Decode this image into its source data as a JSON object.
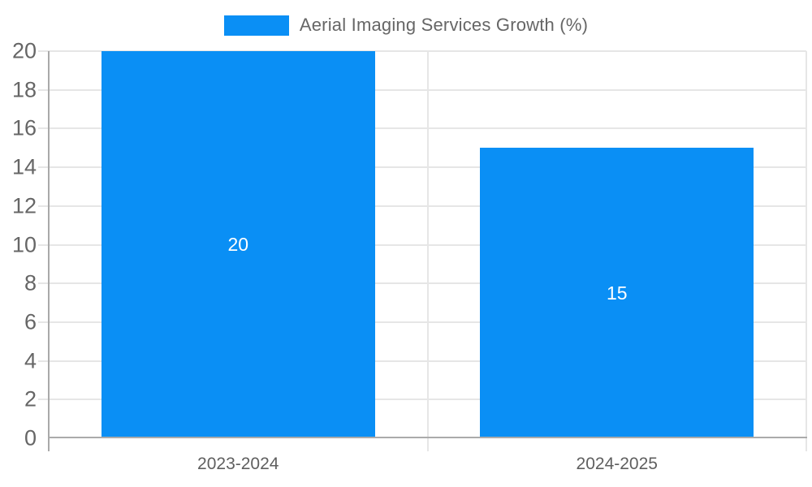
{
  "chart_data": {
    "type": "bar",
    "title": "",
    "legend": {
      "position": "top",
      "label": "Aerial Imaging Services Growth (%)"
    },
    "categories": [
      "2023-2024",
      "2024-2025"
    ],
    "series": [
      {
        "name": "Aerial Imaging Services Growth (%)",
        "values": [
          20,
          15
        ]
      }
    ],
    "data_labels": [
      "20",
      "15"
    ],
    "xlabel": "",
    "ylabel": "",
    "ylim": [
      0,
      20
    ],
    "yticks": [
      0,
      2,
      4,
      6,
      8,
      10,
      12,
      14,
      16,
      18,
      20
    ],
    "grid": true
  },
  "colors": {
    "bar": "#0a8ff5",
    "gridline": "#e6e6e6",
    "y_axis": "#a9a9a9",
    "x_axis": "#ababab",
    "y_label": "#666666",
    "x_label": "#5f5f5f",
    "legend_text": "#666666",
    "bar_label": "#ffffff",
    "background": "#ffffff"
  }
}
